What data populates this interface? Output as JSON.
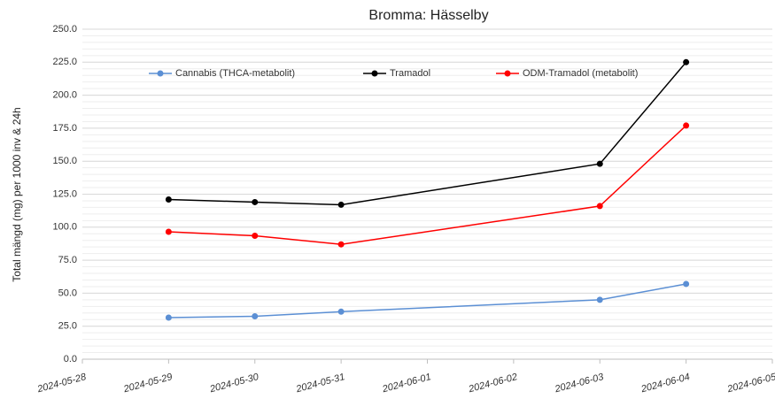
{
  "chart_data": {
    "type": "line",
    "title": "Bromma: Hässelby",
    "y_label": "Total mängd (mg) per 1000 inv & 24h",
    "x": [
      "2024-05-29",
      "2024-05-30",
      "2024-05-31",
      "2024-06-03",
      "2024-06-04"
    ],
    "series": [
      {
        "name": "Cannabis (THCA-metabolit)",
        "color": "#5b8fd4",
        "values": [
          31.5,
          32.5,
          36,
          45,
          57
        ]
      },
      {
        "name": "Tramadol",
        "color": "#000000",
        "values": [
          121,
          119,
          117,
          148,
          225
        ]
      },
      {
        "name": "ODM-Tramadol (metabolit)",
        "color": "#ff0000",
        "values": [
          96.5,
          93.5,
          87,
          116,
          177
        ]
      }
    ],
    "xlim": [
      "2024-05-28",
      "2024-06-05"
    ],
    "xticks": [
      "2024-05-28",
      "2024-05-29",
      "2024-05-30",
      "2024-05-31",
      "2024-06-01",
      "2024-06-02",
      "2024-06-03",
      "2024-06-04",
      "2024-06-05"
    ],
    "ylim": [
      0,
      250
    ],
    "yticks": [
      {
        "value": 0,
        "label": "0.0"
      },
      {
        "value": 25,
        "label": "25.0"
      },
      {
        "value": 50,
        "label": "50.0"
      },
      {
        "value": 75,
        "label": "75.0"
      },
      {
        "value": 100,
        "label": "100.0"
      },
      {
        "value": 125,
        "label": "125.0"
      },
      {
        "value": 150,
        "label": "150.0"
      },
      {
        "value": 175,
        "label": "175.0"
      },
      {
        "value": 200,
        "label": "200.0"
      },
      {
        "value": 225,
        "label": "225.0"
      },
      {
        "value": 250,
        "label": "250.0"
      }
    ],
    "minor_grid_step": 5,
    "grid": true,
    "legend": "top"
  }
}
